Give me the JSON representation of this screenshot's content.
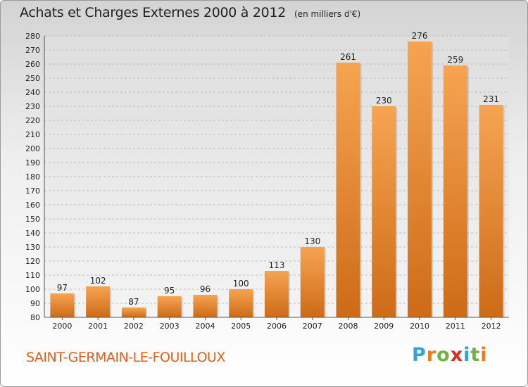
{
  "header": {
    "title": "Achats et Charges Externes 2000 à 2012",
    "unit": "(en milliers d'€)"
  },
  "footer": {
    "commune": "SAINT-GERMAIN-LE-FOUILLOUX"
  },
  "logo": {
    "text": "Proxiti",
    "letters": [
      "P",
      "r",
      "o",
      "x",
      "i",
      "t",
      "i"
    ],
    "colors": [
      "#3aa0d8",
      "#e87b1e",
      "#6cb33f",
      "#e0261f",
      "#3aa0d8",
      "#6cb33f",
      "#e87b1e"
    ]
  },
  "colors": {
    "bar_top": "#f6a452",
    "bar_bottom": "#cd6b17"
  },
  "chart_data": {
    "type": "bar",
    "categories": [
      "2000",
      "2001",
      "2002",
      "2003",
      "2004",
      "2005",
      "2006",
      "2007",
      "2008",
      "2009",
      "2010",
      "2011",
      "2012"
    ],
    "values": [
      97,
      102,
      87,
      95,
      96,
      100,
      113,
      130,
      261,
      230,
      276,
      259,
      231
    ],
    "data_labels": [
      "97",
      "102",
      "87",
      "95",
      "96",
      "100",
      "113",
      "130",
      "261",
      "230",
      "276",
      "259",
      "231"
    ],
    "ylim": [
      80,
      280
    ],
    "y_ticks": [
      "80",
      "90",
      "100",
      "110",
      "120",
      "130",
      "140",
      "150",
      "160",
      "170",
      "180",
      "190",
      "200",
      "210",
      "220",
      "230",
      "240",
      "250",
      "260",
      "270",
      "280"
    ],
    "grid": true,
    "legend": false
  }
}
